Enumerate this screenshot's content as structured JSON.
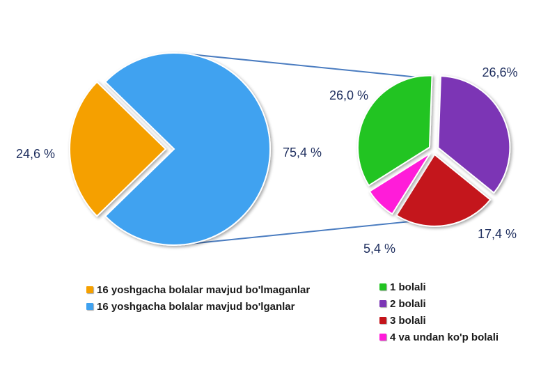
{
  "chart_data": {
    "type": "pie",
    "main_pie": {
      "slices": [
        {
          "label": "16 yoshgacha bolalar mavjud bo'lmaganlar",
          "value": 24.6,
          "display": "24,6 %",
          "color": "#f5a000"
        },
        {
          "label": "16 yoshgacha bolalar mavjud bo'lganlar",
          "value": 75.4,
          "display": "75,4 %",
          "color": "#3fa2f0"
        }
      ]
    },
    "sub_pie": {
      "slices": [
        {
          "label": "1 bolali",
          "value": 26.0,
          "display": "26,0 %",
          "color": "#22c422"
        },
        {
          "label": "2 bolali",
          "value": 26.6,
          "display": "26,6%",
          "color": "#7b36b5"
        },
        {
          "label": "3 bolali",
          "value": 17.4,
          "display": "17,4 %",
          "color": "#c4141a"
        },
        {
          "label": "4 va undan ko'p bolali",
          "value": 5.4,
          "display": "5,4 %",
          "color": "#ff1ad9"
        }
      ]
    },
    "legend_main": [
      "16 yoshgacha bolalar mavjud bo'lmaganlar",
      "16 yoshgacha bolalar mavjud bo'lganlar"
    ],
    "legend_sub": [
      "1 bolali",
      "2 bolali",
      "3 bolali",
      "4 va undan ko'p bolali"
    ],
    "colors": {
      "connector": "#4a7cc0",
      "label_text": "#1f2f5f"
    }
  }
}
